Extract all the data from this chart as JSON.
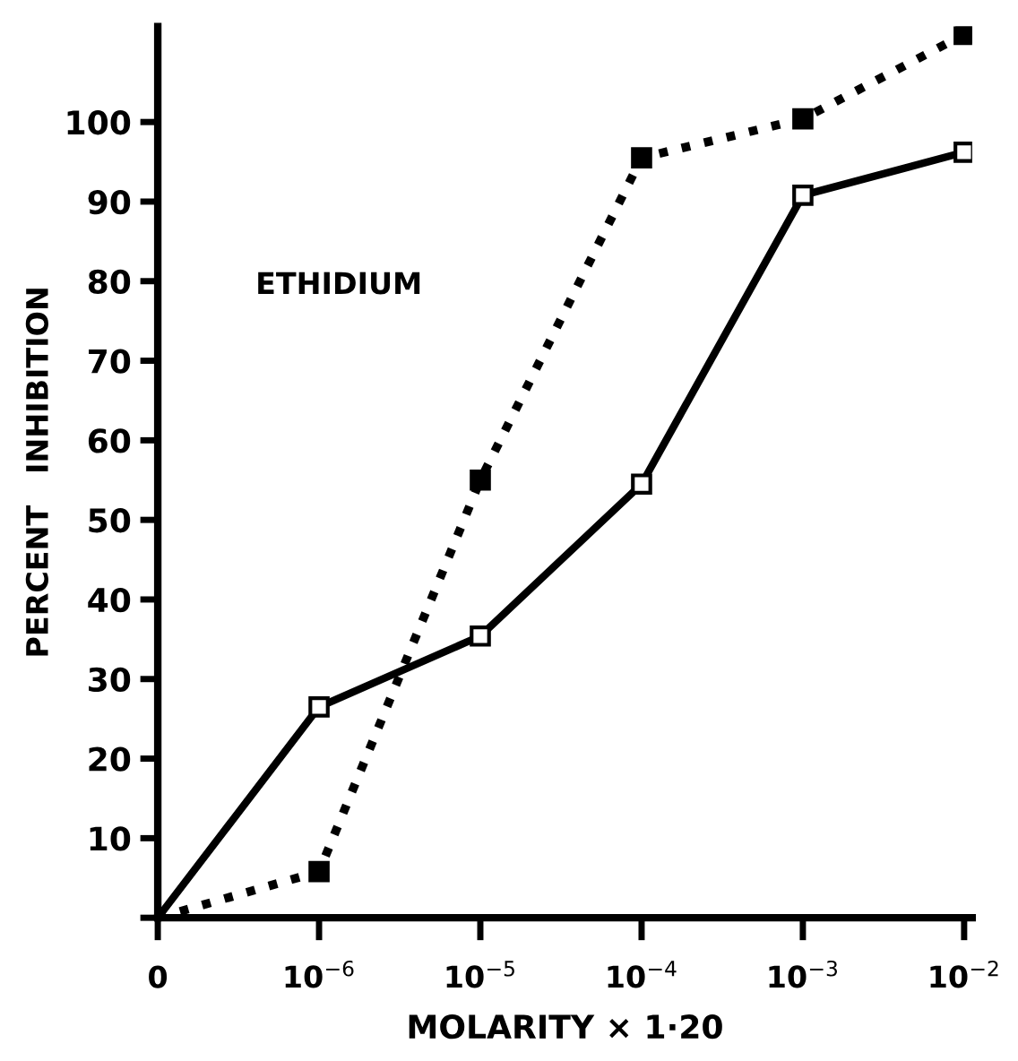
{
  "chart_data": {
    "type": "line",
    "xlabel": "MOLARITY × 1·20",
    "ylabel": "PERCENT   INHIBITION",
    "categories": [
      "0",
      "10$^{−6}$",
      "10$^{−5}$",
      "10$^{−4}$",
      "10$^{−3}$",
      "10$^{−2}$"
    ],
    "ylim": [
      0,
      112
    ],
    "yticks": [
      {
        "value": 0,
        "label": null
      },
      10,
      20,
      30,
      40,
      50,
      60,
      70,
      80,
      90,
      100
    ],
    "annotations": [
      "ETHIDIUM"
    ],
    "grid": false,
    "legend": false,
    "series": [
      {
        "color": "#000000",
        "values": [
          0,
          26.5,
          35.4,
          54.5,
          90.8,
          96.2
        ],
        "marker": "square",
        "line_style": "solid"
      },
      {
        "color": "#000000",
        "values": [
          0,
          5.8,
          55,
          95.5,
          100.4,
          111
        ],
        "marker": "square",
        "line_style": "dotted"
      }
    ]
  }
}
